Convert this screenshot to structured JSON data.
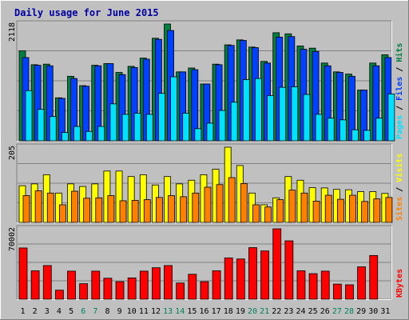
{
  "chart_data": {
    "type": "bar",
    "title": "Daily usage for June 2015",
    "days": [
      "1",
      "2",
      "3",
      "4",
      "5",
      "6",
      "7",
      "8",
      "9",
      "10",
      "11",
      "12",
      "13",
      "14",
      "15",
      "16",
      "17",
      "18",
      "19",
      "20",
      "21",
      "22",
      "23",
      "24",
      "25",
      "26",
      "27",
      "28",
      "29",
      "30",
      "31"
    ],
    "weekend_days": [
      "6",
      "7",
      "13",
      "14",
      "20",
      "21",
      "27",
      "28"
    ],
    "panels": [
      {
        "id": "hits-files-pages",
        "max_label": "2118",
        "ymax": 2118,
        "axis_labels": [
          "Pages",
          "Files",
          "Hits"
        ],
        "series": [
          {
            "name": "Hits",
            "color": "#008040",
            "values": [
              1630,
              1380,
              1390,
              780,
              1170,
              1000,
              1370,
              1400,
              1240,
              1350,
              1500,
              1860,
              2118,
              1250,
              1320,
              1030,
              1390,
              1740,
              1830,
              1700,
              1440,
              1960,
              1940,
              1720,
              1680,
              1410,
              1250,
              1210,
              920,
              1410,
              1560
            ]
          },
          {
            "name": "Files",
            "color": "#0040ff",
            "values": [
              1510,
              1370,
              1360,
              770,
              1130,
              990,
              1360,
              1400,
              1200,
              1330,
              1480,
              1840,
              2000,
              1250,
              1290,
              1030,
              1380,
              1730,
              1820,
              1690,
              1410,
              1880,
              1890,
              1660,
              1620,
              1360,
              1240,
              1170,
              920,
              1360,
              1510
            ]
          },
          {
            "name": "Pages",
            "color": "#00e0ff",
            "values": [
              910,
              570,
              440,
              150,
              260,
              170,
              260,
              670,
              480,
              500,
              480,
              860,
              1160,
              500,
              220,
              320,
              550,
              700,
              1110,
              1130,
              820,
              970,
              980,
              840,
              480,
              410,
              380,
              200,
              190,
              410,
              850
            ]
          }
        ]
      },
      {
        "id": "visits-sites",
        "max_label": "205",
        "ymax": 205,
        "axis_labels": [
          "Sites",
          "Visits"
        ],
        "series": [
          {
            "name": "Visits",
            "color": "#ffff00",
            "values": [
              100,
              105,
              130,
              80,
              105,
              98,
              105,
              140,
              140,
              125,
              130,
              102,
              125,
              105,
              115,
              130,
              145,
              205,
              155,
              80,
              48,
              67,
              125,
              115,
              95,
              94,
              90,
              89,
              84,
              84,
              79
            ]
          },
          {
            "name": "Sites",
            "color": "#ff8000",
            "values": [
              73,
              86,
              80,
              48,
              85,
              66,
              67,
              73,
              59,
              60,
              62,
              68,
              73,
              70,
              80,
              96,
              103,
              122,
              106,
              48,
              42,
              62,
              88,
              80,
              58,
              74,
              63,
              74,
              57,
              64,
              68
            ]
          }
        ]
      },
      {
        "id": "kbytes",
        "max_label": "70002",
        "ymax": 70002,
        "axis_labels": [
          "KBytes"
        ],
        "series": [
          {
            "name": "KBytes",
            "color": "#ff0000",
            "values": [
              50960,
              28250,
              33480,
              8990,
              27930,
              15420,
              27930,
              20860,
              17450,
              21170,
              27930,
              31290,
              33480,
              16120,
              24810,
              17450,
              28250,
              41090,
              40000,
              51280,
              47980,
              70002,
              58040,
              28250,
              25420,
              27930,
              15000,
              14320,
              32190,
              43450,
              0
            ]
          }
        ]
      }
    ]
  }
}
